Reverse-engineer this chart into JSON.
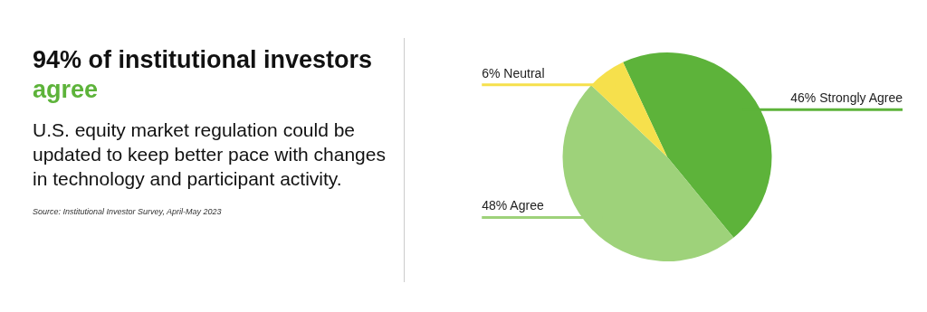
{
  "chart_data": {
    "type": "pie",
    "title": "94% of institutional investors agree",
    "subtitle": "U.S. equity market regulation could be updated to keep better pace with changes in technology and participant activity.",
    "annotations": [
      "Source: Institutional Investor Survey, April-May 2023"
    ],
    "categories": [
      "Strongly Agree",
      "Agree",
      "Neutral"
    ],
    "values": [
      46,
      48,
      6
    ],
    "value_labels": [
      "46%",
      "48%",
      "6%"
    ],
    "colors": [
      "#5db33a",
      "#9ed27a",
      "#f6e04c"
    ],
    "legend": false
  }
}
